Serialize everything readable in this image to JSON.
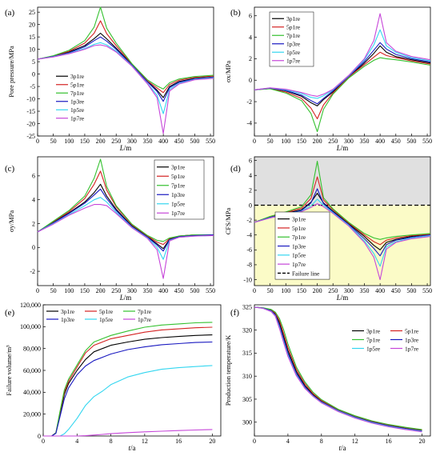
{
  "colors": {
    "3p1re": "#000000",
    "5p1re": "#d42222",
    "7p1re": "#34c12f",
    "1p3re": "#1818c0",
    "1p5re": "#33d6f0",
    "1p7re": "#c646d9",
    "failure": "#000000",
    "grey_region": "#e0e0e0",
    "yellow_region": "#fbfbc7"
  },
  "chart_data": [
    {
      "panel": "(a)",
      "type": "line",
      "xlabel": "L/m",
      "ylabel": "Pore pressure/MPa",
      "xlim": [
        0,
        560
      ],
      "ylim": [
        -25,
        27
      ],
      "xticks": [
        0,
        50,
        100,
        150,
        200,
        250,
        300,
        350,
        400,
        450,
        500,
        550
      ],
      "yticks": [
        -25,
        -20,
        -15,
        -10,
        -5,
        0,
        5,
        10,
        15,
        20,
        25
      ],
      "legend_position": "lower-left",
      "x": [
        0,
        50,
        100,
        150,
        180,
        200,
        220,
        250,
        300,
        350,
        380,
        400,
        420,
        450,
        500,
        560
      ],
      "series": [
        {
          "name": "3p1re",
          "values": [
            6,
            7.2,
            8.9,
            11.5,
            14.3,
            16.5,
            14.2,
            10.5,
            3.8,
            -3,
            -6.5,
            -9.5,
            -5,
            -3,
            -1.7,
            -1.2
          ]
        },
        {
          "name": "5p1re",
          "values": [
            6,
            7.3,
            9.2,
            12.5,
            16.5,
            21.5,
            16.3,
            11.5,
            4,
            -2.8,
            -5.6,
            -7.5,
            -4.2,
            -2.5,
            -1.3,
            -0.8
          ]
        },
        {
          "name": "7p1re",
          "values": [
            6,
            7.4,
            9.6,
            13.5,
            19,
            27,
            18.5,
            12.5,
            4.2,
            -2.4,
            -4.8,
            -6,
            -3.5,
            -2,
            -1,
            -0.5
          ]
        },
        {
          "name": "1p3re",
          "values": [
            6,
            7.1,
            8.6,
            11,
            13.5,
            15,
            13.3,
            10,
            3.6,
            -3.2,
            -7,
            -11,
            -5.5,
            -3.3,
            -1.9,
            -1.3
          ]
        },
        {
          "name": "1p5re",
          "values": [
            6,
            7,
            8.4,
            10.3,
            12,
            12.7,
            11.8,
            9.3,
            3.4,
            -3.8,
            -8.5,
            -16,
            -6.2,
            -3.7,
            -2.1,
            -1.5
          ]
        },
        {
          "name": "1p7re",
          "values": [
            6,
            6.9,
            8.2,
            10,
            11.5,
            11.8,
            11.2,
            8.9,
            3.2,
            -4,
            -9.5,
            -24,
            -6.8,
            -4,
            -2.3,
            -1.7
          ]
        }
      ]
    },
    {
      "panel": "(b)",
      "type": "line",
      "xlabel": "L/m",
      "ylabel": "σx/MPa",
      "xlim": [
        0,
        560
      ],
      "ylim": [
        -5.2,
        6.8
      ],
      "xticks": [
        0,
        50,
        100,
        150,
        200,
        250,
        300,
        350,
        400,
        450,
        500,
        550
      ],
      "yticks": [
        -4,
        -2,
        0,
        2,
        4,
        6
      ],
      "legend_position": "top-left",
      "x": [
        0,
        50,
        100,
        150,
        180,
        200,
        220,
        250,
        300,
        350,
        380,
        400,
        420,
        450,
        500,
        560
      ],
      "series": [
        {
          "name": "3p1re",
          "values": [
            -0.9,
            -0.75,
            -1,
            -1.5,
            -2.1,
            -2.4,
            -1.8,
            -1.1,
            0.3,
            1.6,
            2.5,
            3.2,
            2.6,
            2.2,
            1.9,
            1.6
          ]
        },
        {
          "name": "5p1re",
          "values": [
            -0.9,
            -0.78,
            -1.1,
            -1.7,
            -2.6,
            -3.6,
            -2.3,
            -1.2,
            0.3,
            1.45,
            2.15,
            2.6,
            2.3,
            2.1,
            1.8,
            1.5
          ]
        },
        {
          "name": "7p1re",
          "values": [
            -0.9,
            -0.8,
            -1.2,
            -1.9,
            -3.1,
            -4.8,
            -2.7,
            -1.3,
            0.2,
            1.3,
            1.85,
            2.1,
            2,
            1.9,
            1.7,
            1.4
          ]
        },
        {
          "name": "1p3re",
          "values": [
            -0.9,
            -0.74,
            -0.97,
            -1.4,
            -1.9,
            -2.2,
            -1.7,
            -1,
            0.35,
            1.75,
            2.8,
            3.5,
            2.9,
            2.4,
            2,
            1.7
          ]
        },
        {
          "name": "1p5re",
          "values": [
            -0.9,
            -0.72,
            -0.9,
            -1.25,
            -1.6,
            -1.7,
            -1.45,
            -0.9,
            0.4,
            1.9,
            3.3,
            4.7,
            3.2,
            2.6,
            2.1,
            1.8
          ]
        },
        {
          "name": "1p7re",
          "values": [
            -0.9,
            -0.71,
            -0.85,
            -1.15,
            -1.4,
            -1.5,
            -1.3,
            -0.85,
            0.45,
            2,
            3.7,
            6.2,
            3.5,
            2.7,
            2.2,
            1.9
          ]
        }
      ]
    },
    {
      "panel": "(c)",
      "type": "line",
      "xlabel": "L/m",
      "ylabel": "σy/MPa",
      "xlim": [
        0,
        560
      ],
      "ylim": [
        -3.2,
        7.6
      ],
      "xticks": [
        0,
        50,
        100,
        150,
        200,
        250,
        300,
        350,
        400,
        450,
        500,
        550
      ],
      "yticks": [
        -2,
        0,
        2,
        4,
        6
      ],
      "legend_position": "top-right",
      "x": [
        0,
        50,
        100,
        150,
        180,
        200,
        220,
        250,
        300,
        350,
        380,
        400,
        420,
        450,
        500,
        560
      ],
      "series": [
        {
          "name": "3p1re",
          "values": [
            1.3,
            2.1,
            2.9,
            3.8,
            4.6,
            5.3,
            4.3,
            3.2,
            1.8,
            0.9,
            0.3,
            -0.1,
            0.7,
            0.95,
            1.05,
            1.05
          ]
        },
        {
          "name": "5p1re",
          "values": [
            1.3,
            2.15,
            3,
            4.1,
            5.3,
            6.4,
            4.8,
            3.4,
            1.9,
            0.95,
            0.45,
            0.25,
            0.75,
            0.95,
            1.05,
            1.05
          ]
        },
        {
          "name": "7p1re",
          "values": [
            1.3,
            2.2,
            3.1,
            4.3,
            5.8,
            7.4,
            5.1,
            3.5,
            1.95,
            1,
            0.6,
            0.5,
            0.8,
            0.95,
            1.05,
            1.05
          ]
        },
        {
          "name": "1p3re",
          "values": [
            1.3,
            2.05,
            2.85,
            3.7,
            4.4,
            4.9,
            4.1,
            3.1,
            1.75,
            0.85,
            0.2,
            -0.3,
            0.65,
            0.9,
            1,
            1.05
          ]
        },
        {
          "name": "1p5re",
          "values": [
            1.3,
            2,
            2.75,
            3.5,
            4,
            4.2,
            3.8,
            2.95,
            1.7,
            0.8,
            0,
            -1,
            0.6,
            0.85,
            0.95,
            1
          ]
        },
        {
          "name": "1p7re",
          "values": [
            1.3,
            1.95,
            2.7,
            3.3,
            3.6,
            3.6,
            3.5,
            2.85,
            1.65,
            0.75,
            -0.2,
            -2.6,
            0.55,
            0.85,
            0.95,
            1
          ]
        }
      ]
    },
    {
      "panel": "(d)",
      "type": "line",
      "xlabel": "L/m",
      "ylabel": "CFS/MPa",
      "xlim": [
        0,
        560
      ],
      "ylim": [
        -10.8,
        6.5
      ],
      "xticks": [
        0,
        50,
        100,
        150,
        200,
        250,
        300,
        350,
        400,
        450,
        500,
        550
      ],
      "yticks": [
        -10,
        -8,
        -6,
        -4,
        -2,
        0,
        2,
        4,
        6
      ],
      "legend_position": "lower-left",
      "failure_line": 0,
      "failure_label": "Failure line",
      "x": [
        0,
        50,
        100,
        150,
        180,
        200,
        220,
        250,
        300,
        350,
        380,
        400,
        420,
        450,
        500,
        560
      ],
      "series": [
        {
          "name": "3p1re",
          "values": [
            -2.3,
            -1.6,
            -1.1,
            -0.6,
            0.4,
            1.6,
            0.3,
            -0.8,
            -2.5,
            -4.2,
            -5.4,
            -6,
            -5,
            -4.6,
            -4.2,
            -3.9
          ]
        },
        {
          "name": "5p1re",
          "values": [
            -2.3,
            -1.55,
            -1,
            -0.4,
            0.9,
            3.8,
            0.7,
            -0.6,
            -2.4,
            -4,
            -4.9,
            -5.3,
            -4.7,
            -4.4,
            -4.1,
            -3.9
          ]
        },
        {
          "name": "7p1re",
          "values": [
            -2.3,
            -1.5,
            -0.9,
            -0.2,
            1.4,
            5.9,
            1,
            -0.5,
            -2.3,
            -3.8,
            -4.4,
            -4.6,
            -4.4,
            -4.2,
            -4,
            -3.8
          ]
        },
        {
          "name": "1p3re",
          "values": [
            -2.3,
            -1.65,
            -1.15,
            -0.7,
            0.3,
            2.2,
            0.2,
            -0.9,
            -2.6,
            -4.5,
            -5.8,
            -6.8,
            -5.3,
            -4.7,
            -4.3,
            -4
          ]
        },
        {
          "name": "1p5re",
          "values": [
            -2.3,
            -1.7,
            -1.2,
            -0.8,
            -0.1,
            0.8,
            0,
            -1,
            -2.7,
            -4.8,
            -6.5,
            -8.2,
            -5.6,
            -4.9,
            -4.4,
            -4.1
          ]
        },
        {
          "name": "1p7re",
          "values": [
            -2.3,
            -1.72,
            -1.25,
            -0.85,
            -0.3,
            0.2,
            -0.2,
            -1.1,
            -2.8,
            -5,
            -7,
            -10,
            -5.9,
            -5,
            -4.5,
            -4.2
          ]
        }
      ]
    },
    {
      "panel": "(e)",
      "type": "line",
      "xlabel": "t/a",
      "ylabel": "Failure volume/m³",
      "xlim": [
        0,
        21
      ],
      "ylim": [
        0,
        120000
      ],
      "xticks": [
        0,
        4,
        8,
        12,
        16,
        20
      ],
      "yticks": [
        0,
        20000,
        40000,
        60000,
        80000,
        100000,
        120000
      ],
      "ytick_labels": [
        "0",
        "20,000",
        "40,000",
        "60,000",
        "80,000",
        "100,000",
        "120,000"
      ],
      "legend_position": "top-left",
      "x": [
        0,
        1,
        1.5,
        2,
        2.5,
        3,
        4,
        5,
        6,
        7,
        8,
        10,
        12,
        14,
        16,
        18,
        20
      ],
      "series": [
        {
          "name": "3p1re",
          "values": [
            0,
            0,
            3000,
            20000,
            38000,
            48000,
            60000,
            70000,
            77000,
            80000,
            83000,
            86000,
            88500,
            90000,
            91000,
            92000,
            92500
          ]
        },
        {
          "name": "5p1re",
          "values": [
            0,
            0,
            3000,
            22000,
            40000,
            50000,
            63000,
            76000,
            83000,
            86000,
            89000,
            92000,
            95000,
            97000,
            98000,
            99000,
            99500
          ]
        },
        {
          "name": "7p1re",
          "values": [
            0,
            0,
            3000,
            23000,
            42000,
            52000,
            65000,
            78000,
            86000,
            89000,
            92000,
            96000,
            99500,
            101500,
            102500,
            103500,
            104000
          ]
        },
        {
          "name": "1p3re",
          "values": [
            0,
            0,
            2500,
            18000,
            34000,
            44000,
            56000,
            64000,
            69000,
            72000,
            75000,
            79000,
            81500,
            83500,
            84500,
            85500,
            86000
          ]
        },
        {
          "name": "1p5re",
          "values": [
            0,
            0,
            0,
            0,
            2000,
            6000,
            16000,
            28000,
            36000,
            41000,
            47000,
            54000,
            58000,
            61000,
            62500,
            63500,
            64500
          ]
        },
        {
          "name": "1p7re",
          "values": [
            0,
            0,
            0,
            0,
            0,
            0,
            0,
            300,
            900,
            1500,
            2100,
            3100,
            3800,
            4400,
            5000,
            5500,
            5900
          ]
        }
      ]
    },
    {
      "panel": "(f)",
      "type": "line",
      "xlabel": "t/a",
      "ylabel": "Production temperature/K",
      "xlim": [
        0,
        21
      ],
      "ylim": [
        297,
        325.5
      ],
      "xticks": [
        0,
        4,
        8,
        12,
        16,
        20
      ],
      "yticks": [
        300,
        305,
        310,
        315,
        320,
        325
      ],
      "legend_position": "right",
      "x": [
        0,
        1,
        2,
        2.5,
        3,
        3.5,
        4,
        5,
        6,
        7,
        8,
        10,
        12,
        14,
        16,
        18,
        20
      ],
      "series": [
        {
          "name": "3p1re",
          "values": [
            325,
            324.8,
            324.3,
            323.5,
            321.5,
            318.5,
            315.5,
            311,
            308,
            306,
            304.5,
            302.6,
            301.2,
            300.1,
            299.3,
            298.7,
            298.2
          ]
        },
        {
          "name": "5p1re",
          "values": [
            325,
            324.8,
            324.4,
            323.7,
            322,
            319.2,
            316.2,
            311.5,
            308.4,
            306.2,
            304.7,
            302.7,
            301.3,
            300.2,
            299.4,
            298.8,
            298.3
          ]
        },
        {
          "name": "7p1re",
          "values": [
            325,
            324.85,
            324.5,
            323.9,
            322.5,
            320,
            317,
            312,
            308.8,
            306.5,
            304.9,
            302.8,
            301.4,
            300.3,
            299.5,
            298.9,
            298.4
          ]
        },
        {
          "name": "1p3re",
          "values": [
            325,
            324.8,
            324.2,
            323.3,
            321,
            318,
            315,
            310.6,
            307.7,
            305.8,
            304.4,
            302.5,
            301.1,
            300,
            299.2,
            298.6,
            298.1
          ]
        },
        {
          "name": "1p5re",
          "values": [
            325,
            324.75,
            324.1,
            323.1,
            320.6,
            317.5,
            314.6,
            310.3,
            307.5,
            305.7,
            304.3,
            302.4,
            301,
            299.9,
            299.1,
            298.5,
            298
          ]
        },
        {
          "name": "1p7re",
          "values": [
            325,
            324.75,
            324,
            323,
            320.3,
            317.2,
            314.3,
            310.1,
            307.4,
            305.6,
            304.2,
            302.3,
            300.9,
            299.8,
            299,
            298.4,
            297.9
          ]
        }
      ]
    }
  ]
}
